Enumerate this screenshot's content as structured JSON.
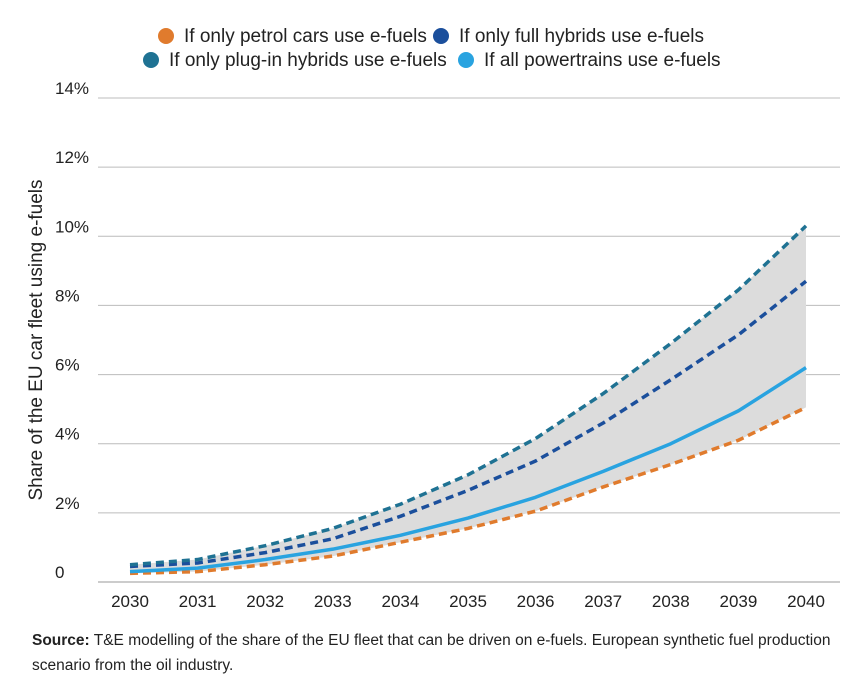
{
  "chart_data": {
    "type": "line",
    "title": "",
    "xlabel": "",
    "ylabel": "Share of the EU car fleet using e-fuels",
    "x": [
      "2030",
      "2031",
      "2032",
      "2033",
      "2034",
      "2035",
      "2036",
      "2037",
      "2038",
      "2039",
      "2040"
    ],
    "ylim": [
      0,
      14
    ],
    "yticks": [
      0,
      2,
      4,
      6,
      8,
      10,
      12,
      14
    ],
    "ytick_labels": [
      "0",
      "2%",
      "4%",
      "6%",
      "8%",
      "10%",
      "12%",
      "14%"
    ],
    "grid": true,
    "legend_position": "top",
    "shaded_range": {
      "upper": "If only plug-in hybrids use e-fuels",
      "lower": "If only petrol cars use e-fuels",
      "color": "#dcdcdc"
    },
    "series": [
      {
        "name": "If only petrol cars use e-fuels",
        "color": "#e07b2d",
        "style": "dashed",
        "values": [
          0.25,
          0.3,
          0.5,
          0.75,
          1.15,
          1.55,
          2.05,
          2.75,
          3.4,
          4.1,
          5.05
        ]
      },
      {
        "name": "If only full hybrids use e-fuels",
        "color": "#1b4f9c",
        "style": "dashed",
        "values": [
          0.45,
          0.55,
          0.85,
          1.25,
          1.9,
          2.65,
          3.5,
          4.6,
          5.85,
          7.15,
          8.7
        ]
      },
      {
        "name": "If only plug-in hybrids use e-fuels",
        "color": "#1f7293",
        "style": "dashed",
        "values": [
          0.5,
          0.65,
          1.05,
          1.55,
          2.25,
          3.1,
          4.15,
          5.45,
          6.9,
          8.45,
          10.3
        ]
      },
      {
        "name": "If all powertrains use e-fuels",
        "color": "#29a3e0",
        "style": "solid",
        "values": [
          0.3,
          0.4,
          0.65,
          0.95,
          1.35,
          1.85,
          2.45,
          3.2,
          4.0,
          4.95,
          6.2
        ]
      }
    ]
  },
  "legend_order": [
    "If only petrol cars use e-fuels",
    "If only full hybrids use e-fuels",
    "If only plug-in hybrids use e-fuels",
    "If all powertrains use e-fuels"
  ],
  "source": {
    "label": "Source:",
    "text": "T&E modelling of the share of the EU fleet that can be driven on e-fuels. European synthetic fuel production scenario from the oil industry."
  }
}
